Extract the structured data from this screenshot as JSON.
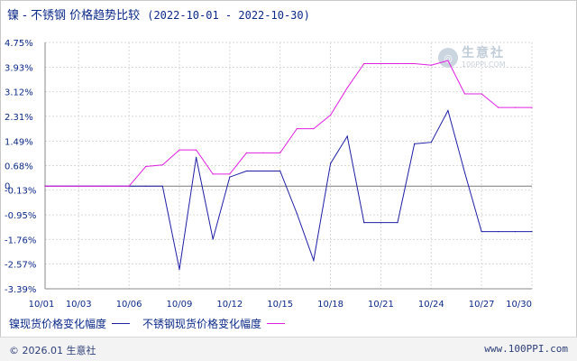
{
  "header": {
    "title": "镍 - 不锈钢 价格趋势比较",
    "date_range": "(2022-10-01 - 2022-10-30)"
  },
  "watermark": {
    "name": "生意社",
    "url": "100PPI.COM"
  },
  "footer": {
    "copyright": "© 2026.01 生意社",
    "url": "www.100PPI.com"
  },
  "chart_data": {
    "type": "line",
    "title": "镍 - 不锈钢 价格趋势比较",
    "xlabel": "",
    "ylabel": "",
    "x": [
      "10/01",
      "10/02",
      "10/03",
      "10/04",
      "10/05",
      "10/06",
      "10/07",
      "10/08",
      "10/09",
      "10/10",
      "10/11",
      "10/12",
      "10/13",
      "10/14",
      "10/15",
      "10/16",
      "10/17",
      "10/18",
      "10/19",
      "10/20",
      "10/21",
      "10/22",
      "10/23",
      "10/24",
      "10/25",
      "10/26",
      "10/27",
      "10/28",
      "10/29",
      "10/30"
    ],
    "x_tick_labels": [
      "10/01",
      "10/03",
      "10/06",
      "10/09",
      "10/12",
      "10/15",
      "10/18",
      "10/21",
      "10/24",
      "10/27",
      "10/30"
    ],
    "y_tick_labels": [
      "4.75%",
      "3.93%",
      "3.12%",
      "2.31%",
      "1.49%",
      "0.68%",
      "-0.13%",
      "-0.95%",
      "-1.76%",
      "-2.57%",
      "-3.39%"
    ],
    "y_ticks": [
      4.75,
      3.93,
      3.12,
      2.31,
      1.49,
      0.68,
      -0.13,
      -0.95,
      -1.76,
      -2.57,
      -3.39
    ],
    "zero_label": "0",
    "ylim": [
      -3.39,
      4.75
    ],
    "grid": true,
    "legend_position": "bottom-left",
    "series": [
      {
        "name": "镍现货价格变化幅度",
        "color": "#1f1fa6",
        "values": [
          0,
          0,
          0,
          0,
          0,
          0,
          0,
          0,
          -2.75,
          0.95,
          -1.75,
          0.3,
          0.5,
          0.5,
          0.5,
          -0.9,
          -2.45,
          0.75,
          1.65,
          -1.2,
          -1.2,
          -1.2,
          1.4,
          1.45,
          2.5,
          0.45,
          -1.5,
          -1.5,
          -1.5,
          -1.5
        ]
      },
      {
        "name": "不锈钢现货价格变化幅度",
        "color": "#e020e0",
        "values": [
          0,
          0,
          0,
          0,
          0,
          0,
          0.65,
          0.7,
          1.2,
          1.2,
          0.4,
          0.4,
          1.1,
          1.1,
          1.1,
          1.9,
          1.9,
          2.35,
          3.25,
          4.05,
          4.05,
          4.05,
          4.05,
          4.0,
          4.15,
          3.05,
          3.05,
          2.6,
          2.6,
          2.6
        ]
      }
    ]
  }
}
